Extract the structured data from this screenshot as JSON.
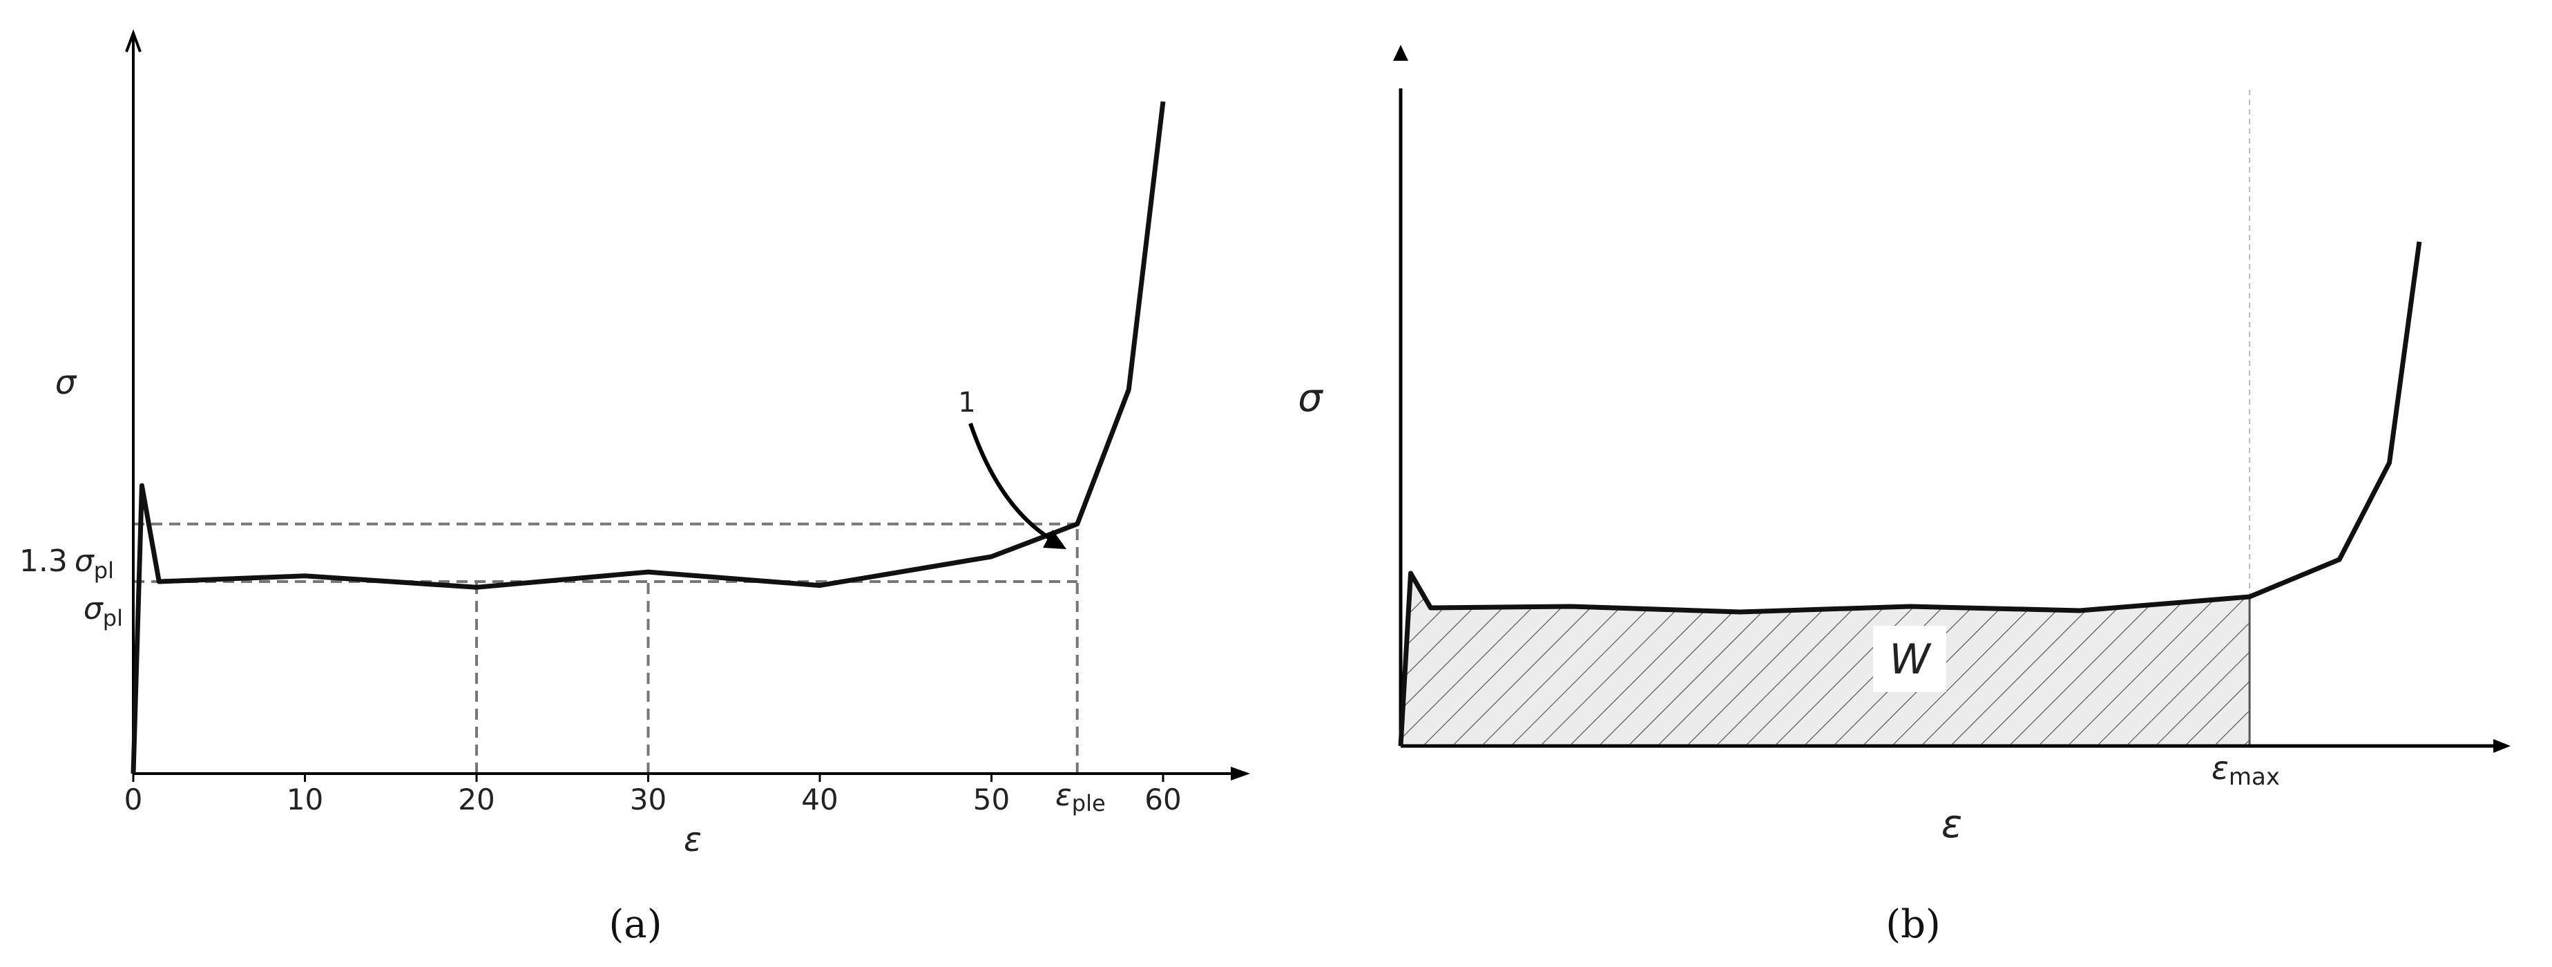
{
  "chart_data": [
    {
      "panel": "a",
      "type": "line",
      "caption": "(a)",
      "xlabel": "ε",
      "ylabel": "σ",
      "xlim": [
        0,
        65
      ],
      "x_ticks": [
        0,
        10,
        20,
        30,
        40,
        50,
        60
      ],
      "y_marks": [
        {
          "prefix": "1.3",
          "sym": "σ",
          "sub": "pl",
          "value": 1.3
        },
        {
          "prefix": "",
          "sym": "σ",
          "sub": "pl",
          "value": 1.0
        }
      ],
      "x_marker": {
        "sym": "ε",
        "sub": "ple",
        "x": 55
      },
      "vertical_refs": [
        20,
        30,
        55
      ],
      "annotation": {
        "text": "1",
        "points_to_x": 55,
        "points_to_y": 1.3
      },
      "series": [
        {
          "x": [
            0,
            0.5,
            1.5,
            10,
            20,
            30,
            40,
            50,
            55,
            58,
            60
          ],
          "y": [
            0,
            1.5,
            1.0,
            1.03,
            0.97,
            1.05,
            0.98,
            1.13,
            1.3,
            2.0,
            3.5
          ]
        }
      ]
    },
    {
      "panel": "b",
      "type": "area",
      "caption": "(b)",
      "xlabel": "ε",
      "ylabel": "σ",
      "area_label": "W",
      "x_marker": {
        "sym": "ε",
        "sub": "max",
        "x": 0.85
      },
      "x_scale": "relative strain 0–1",
      "series": [
        {
          "x": [
            0,
            0.01,
            0.03,
            0.17,
            0.34,
            0.51,
            0.68,
            0.85,
            0.94,
            0.99,
            1.02
          ],
          "y": [
            0,
            1.25,
            1.0,
            1.01,
            0.97,
            1.01,
            0.98,
            1.08,
            1.35,
            2.05,
            3.65
          ]
        }
      ]
    }
  ]
}
